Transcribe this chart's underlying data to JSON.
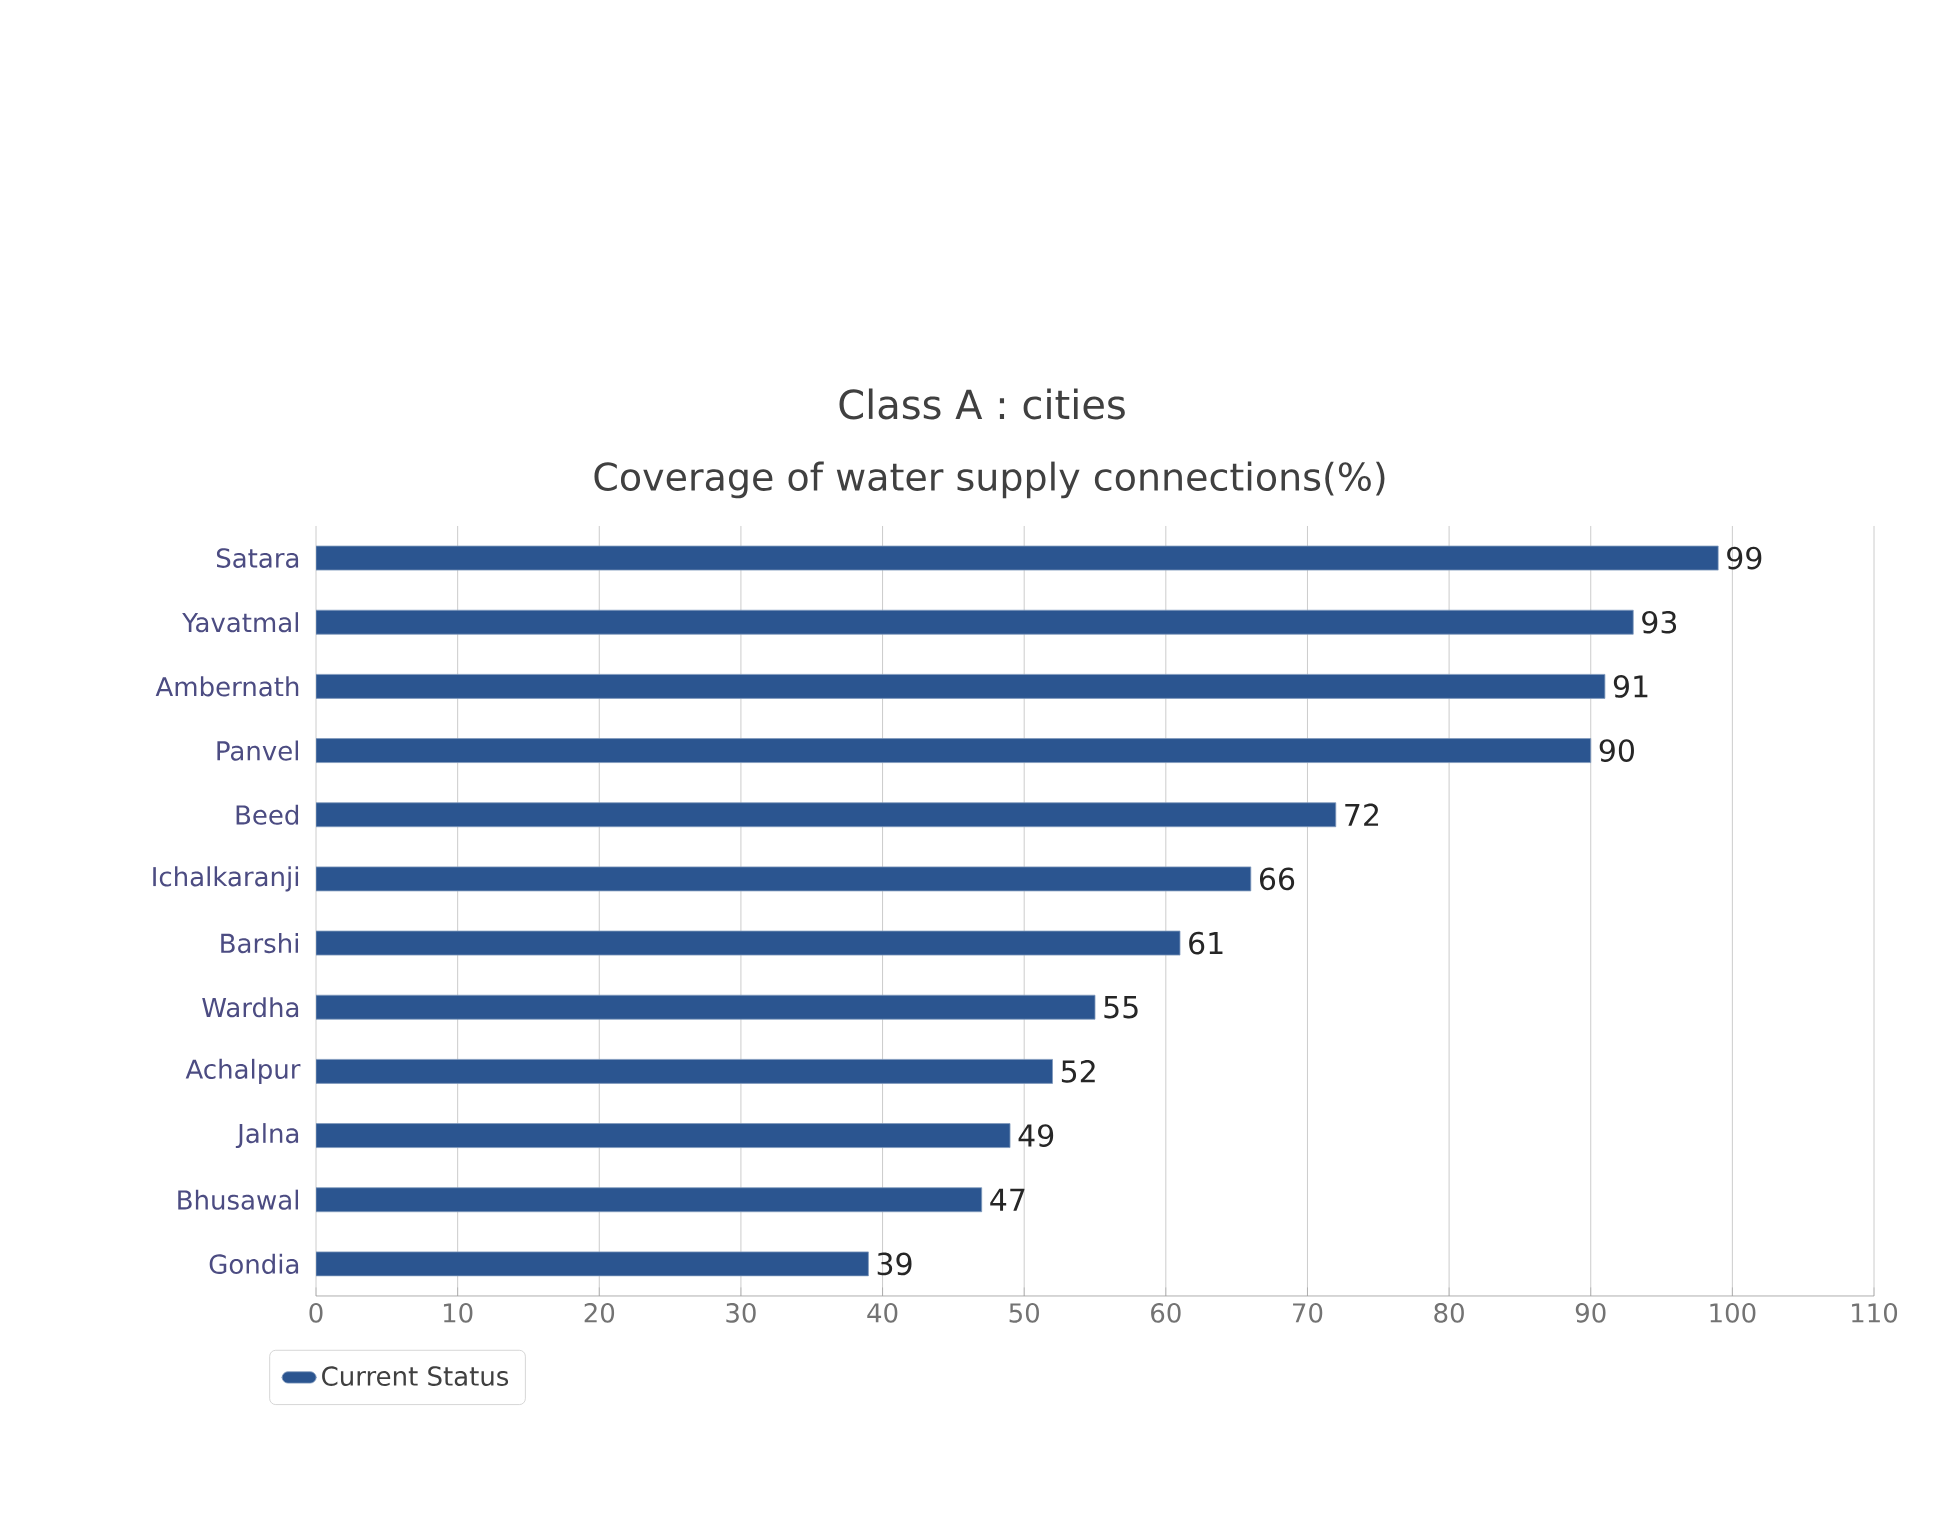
{
  "chart_data": {
    "type": "bar",
    "orientation": "horizontal",
    "title": "Class A : cities",
    "subtitle": "Coverage of water supply connections(%)",
    "categories": [
      "Satara",
      "Yavatmal",
      "Ambernath",
      "Panvel",
      "Beed",
      "Ichalkaranji",
      "Barshi",
      "Wardha",
      "Achalpur",
      "Jalna",
      "Bhusawal",
      "Gondia"
    ],
    "series": [
      {
        "name": "Current Status",
        "color": "#2b5590",
        "values": [
          99,
          93,
          91,
          90,
          72,
          66,
          61,
          55,
          52,
          49,
          47,
          39
        ]
      }
    ],
    "xlim": [
      0,
      110
    ],
    "xticks": [
      0,
      10,
      20,
      30,
      40,
      50,
      60,
      70,
      80,
      90,
      100,
      110
    ],
    "grid": "x",
    "legend": "bottom left",
    "data_labels": true
  }
}
